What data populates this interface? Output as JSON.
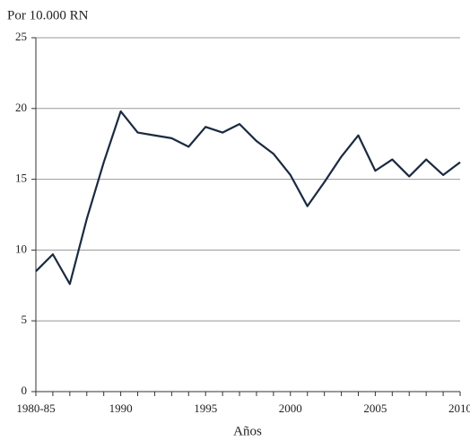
{
  "chart_data": {
    "type": "line",
    "title": "Por 10.000 RN",
    "x_label": "Años",
    "categories": [
      "1980-85",
      null,
      null,
      null,
      null,
      "1990",
      null,
      null,
      null,
      null,
      "1995",
      null,
      null,
      null,
      null,
      "2000",
      null,
      null,
      null,
      null,
      "2005",
      null,
      null,
      null,
      null,
      "2010"
    ],
    "series": [
      {
        "color": "#1b2a41",
        "values": [
          8.5,
          9.7,
          7.6,
          12.2,
          16.2,
          19.8,
          18.3,
          18.1,
          17.9,
          17.3,
          18.7,
          18.3,
          18.9,
          17.7,
          16.8,
          15.3,
          13.1,
          14.8,
          16.6,
          18.1,
          15.6,
          16.4,
          15.2,
          16.4,
          15.3,
          16.2
        ]
      }
    ],
    "ylim": [
      0,
      25
    ],
    "yticks": [
      0,
      5,
      10,
      15,
      20,
      25
    ],
    "grid": true
  }
}
